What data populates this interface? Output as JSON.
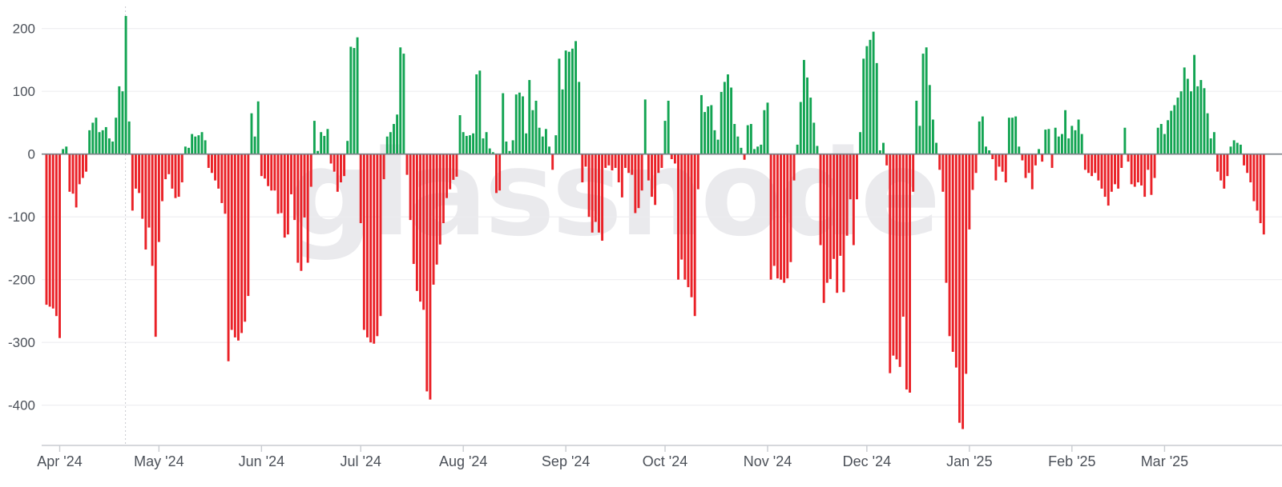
{
  "watermark_text": "glassnode",
  "colors": {
    "positive_bar": "#12a452",
    "negative_bar": "#ea2127",
    "gridline": "#ededf0",
    "zero_line": "#7b8087",
    "axis_line": "#c9ccd1",
    "tick_mark": "#c9ccd1",
    "axis_label": "#4b5058",
    "watermark": "#eaeaed",
    "guide_dotted_line": "#c9cbd0",
    "background": "#ffffff"
  },
  "chart_data": {
    "type": "bar",
    "title": "",
    "xlabel": "",
    "ylabel": "",
    "legend": "none",
    "grid": "horizontal",
    "start_date": "2024-03-28",
    "frequency": "daily",
    "ylim": [
      -470,
      245
    ],
    "y_axis": {
      "ticks": [
        200,
        100,
        0,
        -100,
        -200,
        -300,
        -400
      ],
      "labels": [
        "200",
        "100",
        "0",
        "-100",
        "-200",
        "-300",
        "-400"
      ]
    },
    "x_axis": {
      "labels": [
        "Apr '24",
        "May '24",
        "Jun '24",
        "Jul '24",
        "Aug '24",
        "Sep '24",
        "Oct '24",
        "Nov '24",
        "Dec '24",
        "Jan '25",
        "Feb '25",
        "Mar '25"
      ],
      "tick_indices": [
        4,
        34,
        65,
        95,
        126,
        157,
        187,
        218,
        248,
        279,
        310,
        338
      ]
    },
    "guide_line_index": 24,
    "values": [
      -240,
      -243,
      -246,
      -258,
      -293,
      8,
      12,
      -60,
      -63,
      -85,
      -48,
      -38,
      -28,
      38,
      50,
      58,
      35,
      38,
      43,
      25,
      20,
      58,
      108,
      100,
      220,
      52,
      -90,
      -55,
      -62,
      -103,
      -152,
      -117,
      -178,
      -291,
      -140,
      -75,
      -40,
      -32,
      -55,
      -70,
      -68,
      -45,
      12,
      10,
      32,
      28,
      30,
      35,
      22,
      -22,
      -30,
      -42,
      -55,
      -78,
      -95,
      -330,
      -280,
      -292,
      -297,
      -285,
      -267,
      -226,
      65,
      28,
      84,
      -35,
      -39,
      -51,
      -58,
      -58,
      -95,
      -94,
      -133,
      -128,
      -64,
      -105,
      -173,
      -186,
      -101,
      -173,
      -52,
      53,
      5,
      35,
      29,
      40,
      -15,
      -28,
      -60,
      -45,
      -35,
      21,
      171,
      169,
      186,
      -110,
      -280,
      -292,
      -300,
      -302,
      -290,
      -258,
      -40,
      28,
      35,
      48,
      63,
      170,
      160,
      -33,
      -105,
      -175,
      -218,
      -235,
      -248,
      -378,
      -391,
      -208,
      -176,
      -144,
      -110,
      -70,
      -56,
      -41,
      -36,
      62,
      35,
      29,
      30,
      33,
      127,
      133,
      25,
      35,
      9,
      3,
      -62,
      -58,
      97,
      20,
      5,
      22,
      95,
      98,
      92,
      33,
      118,
      70,
      85,
      42,
      28,
      40,
      12,
      -25,
      30,
      152,
      103,
      165,
      163,
      168,
      180,
      115,
      -45,
      -20,
      -100,
      -125,
      -108,
      -125,
      -138,
      -22,
      -18,
      -26,
      -22,
      -45,
      -69,
      -22,
      -30,
      -33,
      -94,
      -86,
      -58,
      87,
      -42,
      -68,
      -81,
      -30,
      -22,
      53,
      85,
      -8,
      -15,
      -200,
      -168,
      -200,
      -212,
      -228,
      -258,
      -56,
      94,
      67,
      76,
      78,
      38,
      23,
      99,
      115,
      127,
      106,
      48,
      28,
      10,
      -9,
      46,
      48,
      8,
      12,
      15,
      70,
      82,
      -200,
      -178,
      -198,
      -200,
      -205,
      -198,
      -172,
      -42,
      15,
      83,
      150,
      122,
      90,
      50,
      13,
      -145,
      -237,
      -205,
      -199,
      -167,
      -221,
      -162,
      -220,
      -130,
      -72,
      -145,
      -72,
      35,
      152,
      172,
      182,
      195,
      145,
      6,
      18,
      -18,
      -349,
      -321,
      -327,
      -339,
      -259,
      -375,
      -380,
      -60,
      85,
      45,
      160,
      170,
      110,
      55,
      18,
      -25,
      -60,
      -205,
      -290,
      -315,
      -340,
      -428,
      -438,
      -350,
      -120,
      -57,
      -30,
      52,
      60,
      12,
      6,
      -8,
      -42,
      -20,
      -28,
      -45,
      58,
      58,
      60,
      12,
      -10,
      -38,
      -30,
      -56,
      -18,
      8,
      -12,
      39,
      40,
      -22,
      42,
      28,
      32,
      70,
      25,
      45,
      38,
      55,
      32,
      -25,
      -30,
      -35,
      -30,
      -42,
      -55,
      -68,
      -82,
      -60,
      -48,
      -55,
      -22,
      42,
      -12,
      -48,
      -52,
      -45,
      -50,
      -68,
      -25,
      -65,
      -38,
      42,
      48,
      32,
      54,
      69,
      78,
      90,
      100,
      138,
      120,
      100,
      158,
      108,
      118,
      105,
      65,
      25,
      35,
      -28,
      -42,
      -55,
      -35,
      12,
      22,
      18,
      15,
      -18,
      -30,
      -45,
      -75,
      -90,
      -110,
      -128
    ]
  }
}
